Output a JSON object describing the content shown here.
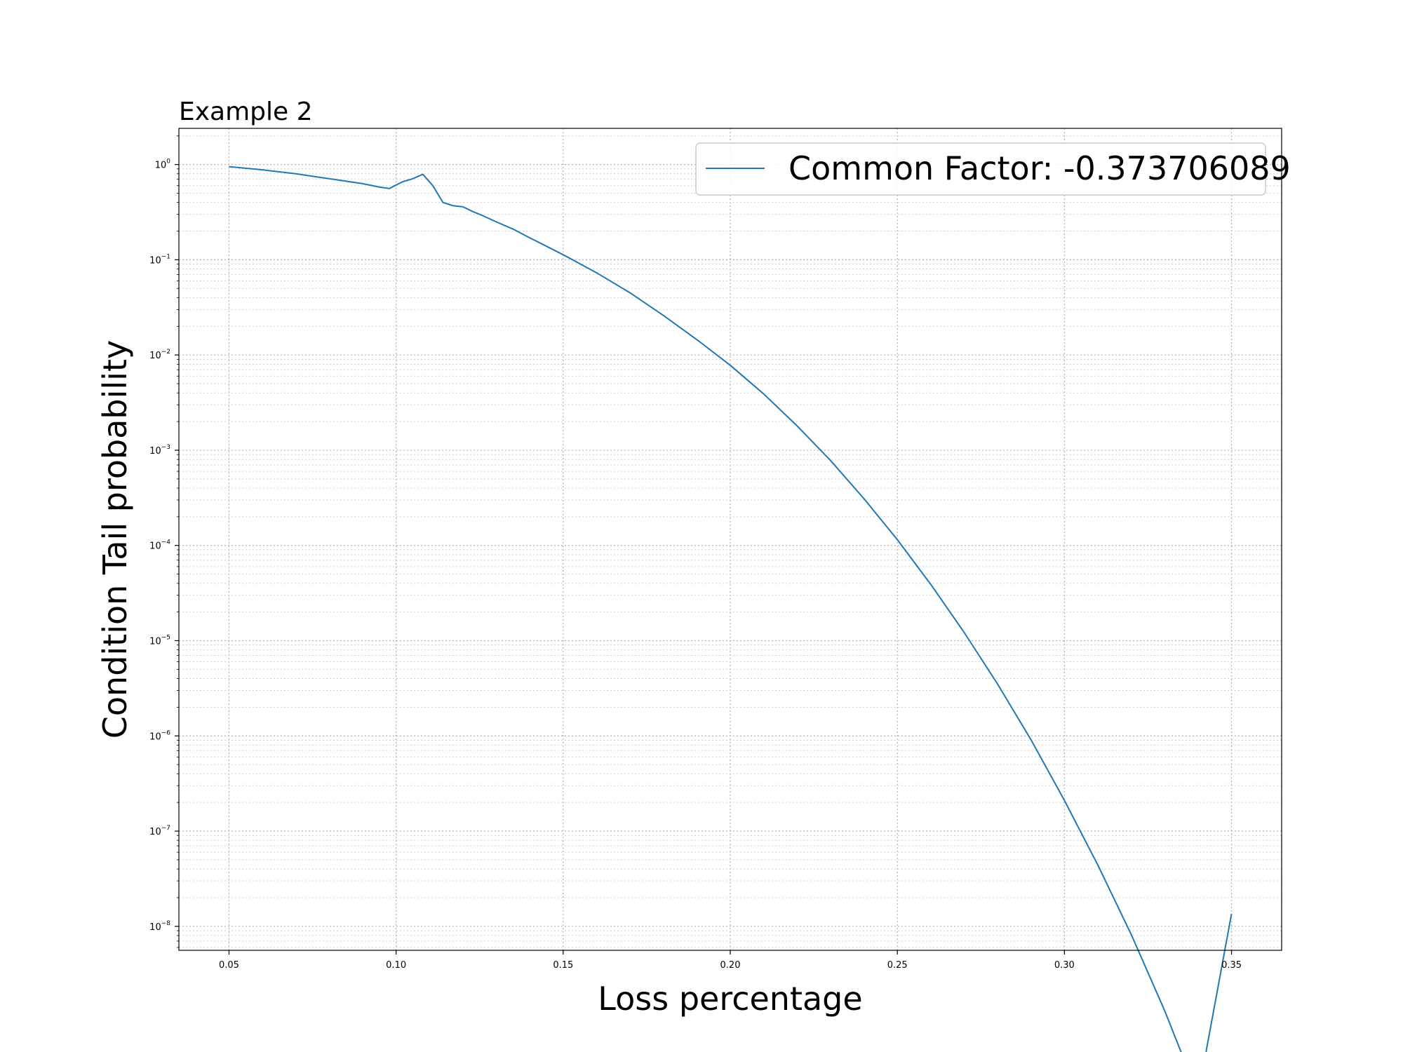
{
  "chart_data": {
    "type": "line",
    "title": "Example 2",
    "xlabel": "Loss percentage",
    "ylabel": "Condition Tail probability",
    "xscale": "linear",
    "yscale": "log",
    "xlim": [
      0.035,
      0.365
    ],
    "ylim": [
      5.6e-09,
      2.4
    ],
    "grid": true,
    "grid_style": "dotted",
    "legend_placement": "top-right",
    "x_ticks": [
      {
        "value": 0.05,
        "label": "0.05"
      },
      {
        "value": 0.1,
        "label": "0.10"
      },
      {
        "value": 0.15,
        "label": "0.15"
      },
      {
        "value": 0.2,
        "label": "0.20"
      },
      {
        "value": 0.25,
        "label": "0.25"
      },
      {
        "value": 0.3,
        "label": "0.30"
      },
      {
        "value": 0.35,
        "label": "0.35"
      }
    ],
    "y_ticks": [
      {
        "exp": 0,
        "mantissa": "10",
        "exponent": "0"
      },
      {
        "exp": -1,
        "mantissa": "10",
        "exponent": "−1"
      },
      {
        "exp": -2,
        "mantissa": "10",
        "exponent": "−2"
      },
      {
        "exp": -3,
        "mantissa": "10",
        "exponent": "−3"
      },
      {
        "exp": -4,
        "mantissa": "10",
        "exponent": "−4"
      },
      {
        "exp": -5,
        "mantissa": "10",
        "exponent": "−5"
      },
      {
        "exp": -6,
        "mantissa": "10",
        "exponent": "−6"
      },
      {
        "exp": -7,
        "mantissa": "10",
        "exponent": "−7"
      },
      {
        "exp": -8,
        "mantissa": "10",
        "exponent": "−8"
      }
    ],
    "series": [
      {
        "name": "Common Factor: -0.373706089",
        "color": "#1f77b4",
        "x": [
          0.05,
          0.06,
          0.07,
          0.08,
          0.09,
          0.095,
          0.098,
          0.1,
          0.102,
          0.105,
          0.108,
          0.111,
          0.114,
          0.117,
          0.12,
          0.123,
          0.126,
          0.13,
          0.135,
          0.14,
          0.15,
          0.16,
          0.17,
          0.18,
          0.19,
          0.2,
          0.21,
          0.22,
          0.23,
          0.24,
          0.25,
          0.26,
          0.27,
          0.28,
          0.29,
          0.3,
          0.31,
          0.32,
          0.33,
          0.34,
          0.35
        ],
        "y": [
          0.95,
          0.88,
          0.8,
          0.71,
          0.63,
          0.58,
          0.56,
          0.61,
          0.66,
          0.71,
          0.79,
          0.6,
          0.4,
          0.37,
          0.36,
          0.32,
          0.29,
          0.25,
          0.21,
          0.17,
          0.113,
          0.073,
          0.045,
          0.026,
          0.0145,
          0.0078,
          0.0039,
          0.0018,
          0.00078,
          0.00031,
          0.000115,
          3.9e-05,
          1.22e-05,
          3.5e-06,
          9.1e-07,
          2.1e-07,
          4.4e-08,
          8.2e-09,
          1.3e-09,
          1.7e-10,
          1.35e-08
        ]
      }
    ]
  }
}
